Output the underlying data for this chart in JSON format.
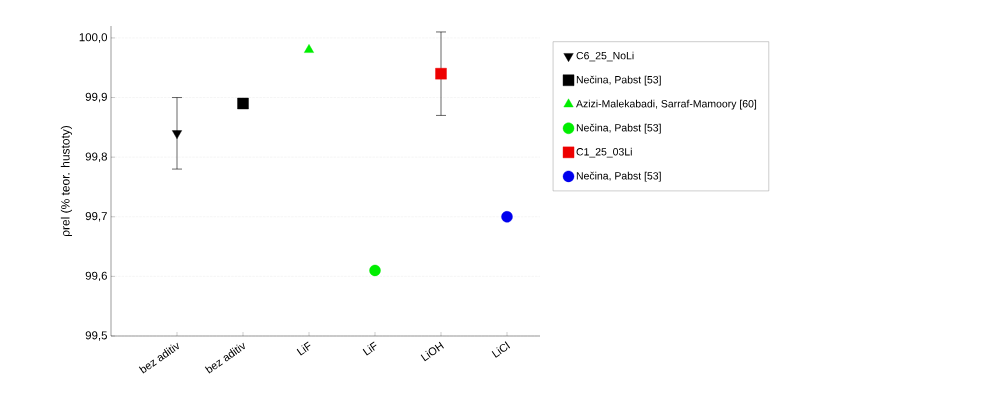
{
  "chart_data": {
    "type": "scatter",
    "ylabel": "ρrel  (% teor. hustoty)",
    "categories": [
      "bez aditiv",
      "bez aditiv",
      "LiF",
      "LiF",
      "LiOH",
      "LiCl"
    ],
    "ylim": [
      99.5,
      100.02
    ],
    "yticks": [
      {
        "value": 99.5,
        "label": "99,5"
      },
      {
        "value": 99.6,
        "label": "99,6"
      },
      {
        "value": 99.7,
        "label": "99,7"
      },
      {
        "value": 99.8,
        "label": "99,8"
      },
      {
        "value": 99.9,
        "label": "99,9"
      },
      {
        "value": 100.0,
        "label": "100,0"
      }
    ],
    "grid": "y",
    "legend": "right",
    "series": [
      {
        "name": "C6_25_NoLi",
        "color": "#000000",
        "marker": "triangle-down",
        "values": [
          99.84,
          null,
          null,
          null,
          null,
          null
        ],
        "errors": [
          0.06,
          null,
          null,
          null,
          null,
          null
        ]
      },
      {
        "name": "Nečina, Pabst  [53]",
        "color": "#000000",
        "marker": "square",
        "values": [
          null,
          99.89,
          null,
          null,
          null,
          null
        ]
      },
      {
        "name": "Azizi-Malekabadi, Sarraf-Mamoory [60]",
        "color": "#00ee00",
        "marker": "triangle",
        "values": [
          null,
          null,
          99.98,
          null,
          null,
          null
        ]
      },
      {
        "name": "Nečina, Pabst  [53]",
        "color": "#00ee00",
        "marker": "circle",
        "values": [
          null,
          null,
          null,
          99.61,
          null,
          null
        ]
      },
      {
        "name": "C1_25_03Li",
        "color": "#ee0000",
        "marker": "square",
        "values": [
          null,
          null,
          null,
          null,
          99.94,
          null
        ],
        "errors": [
          null,
          null,
          null,
          null,
          0.07,
          null
        ]
      },
      {
        "name": "Nečina, Pabst  [53]",
        "color": "#0000ee",
        "marker": "circle",
        "values": [
          null,
          null,
          null,
          null,
          null,
          99.7
        ]
      }
    ]
  }
}
